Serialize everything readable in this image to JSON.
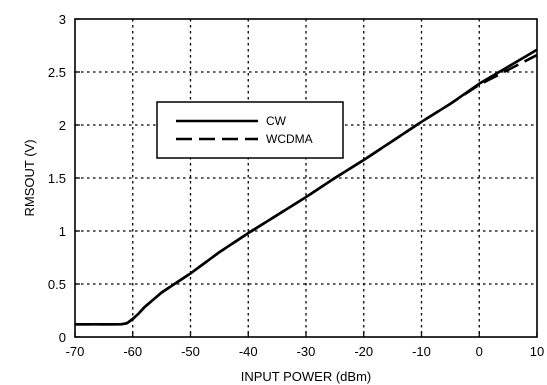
{
  "chart_data": {
    "type": "line",
    "title": "",
    "xlabel": "INPUT POWER (dBm)",
    "ylabel": "RMSOUT (V)",
    "xlim": [
      -70,
      10
    ],
    "ylim": [
      0,
      3
    ],
    "xticks": [
      -70,
      -60,
      -50,
      -40,
      -30,
      -20,
      -10,
      0,
      10
    ],
    "yticks": [
      0,
      0.5,
      1,
      1.5,
      2,
      2.5,
      3
    ],
    "xtick_labels": [
      "-70",
      "-60",
      "-50",
      "-40",
      "-30",
      "-20",
      "-10",
      "0",
      "10"
    ],
    "ytick_labels": [
      "0",
      "0.5",
      "1",
      "1.5",
      "2",
      "2.5",
      "3"
    ],
    "grid": true,
    "legend": "upper-left",
    "series": [
      {
        "name": "CW",
        "style": "solid",
        "x": [
          -70,
          -65,
          -62,
          -61,
          -60,
          -59,
          -58,
          -55,
          -50,
          -45,
          -40,
          -35,
          -30,
          -25,
          -20,
          -15,
          -10,
          -5,
          0,
          5,
          10
        ],
        "y": [
          0.12,
          0.12,
          0.12,
          0.13,
          0.17,
          0.22,
          0.28,
          0.42,
          0.6,
          0.8,
          0.98,
          1.15,
          1.32,
          1.5,
          1.67,
          1.85,
          2.03,
          2.2,
          2.39,
          2.55,
          2.71
        ]
      },
      {
        "name": "WCDMA",
        "style": "dashed",
        "x": [
          -70,
          -65,
          -62,
          -61,
          -60,
          -59,
          -58,
          -55,
          -50,
          -45,
          -40,
          -35,
          -30,
          -25,
          -20,
          -15,
          -10,
          -5,
          0,
          5,
          10
        ],
        "y": [
          0.12,
          0.12,
          0.12,
          0.13,
          0.17,
          0.22,
          0.28,
          0.42,
          0.6,
          0.8,
          0.98,
          1.15,
          1.32,
          1.5,
          1.67,
          1.85,
          2.03,
          2.2,
          2.38,
          2.52,
          2.66
        ]
      }
    ]
  }
}
